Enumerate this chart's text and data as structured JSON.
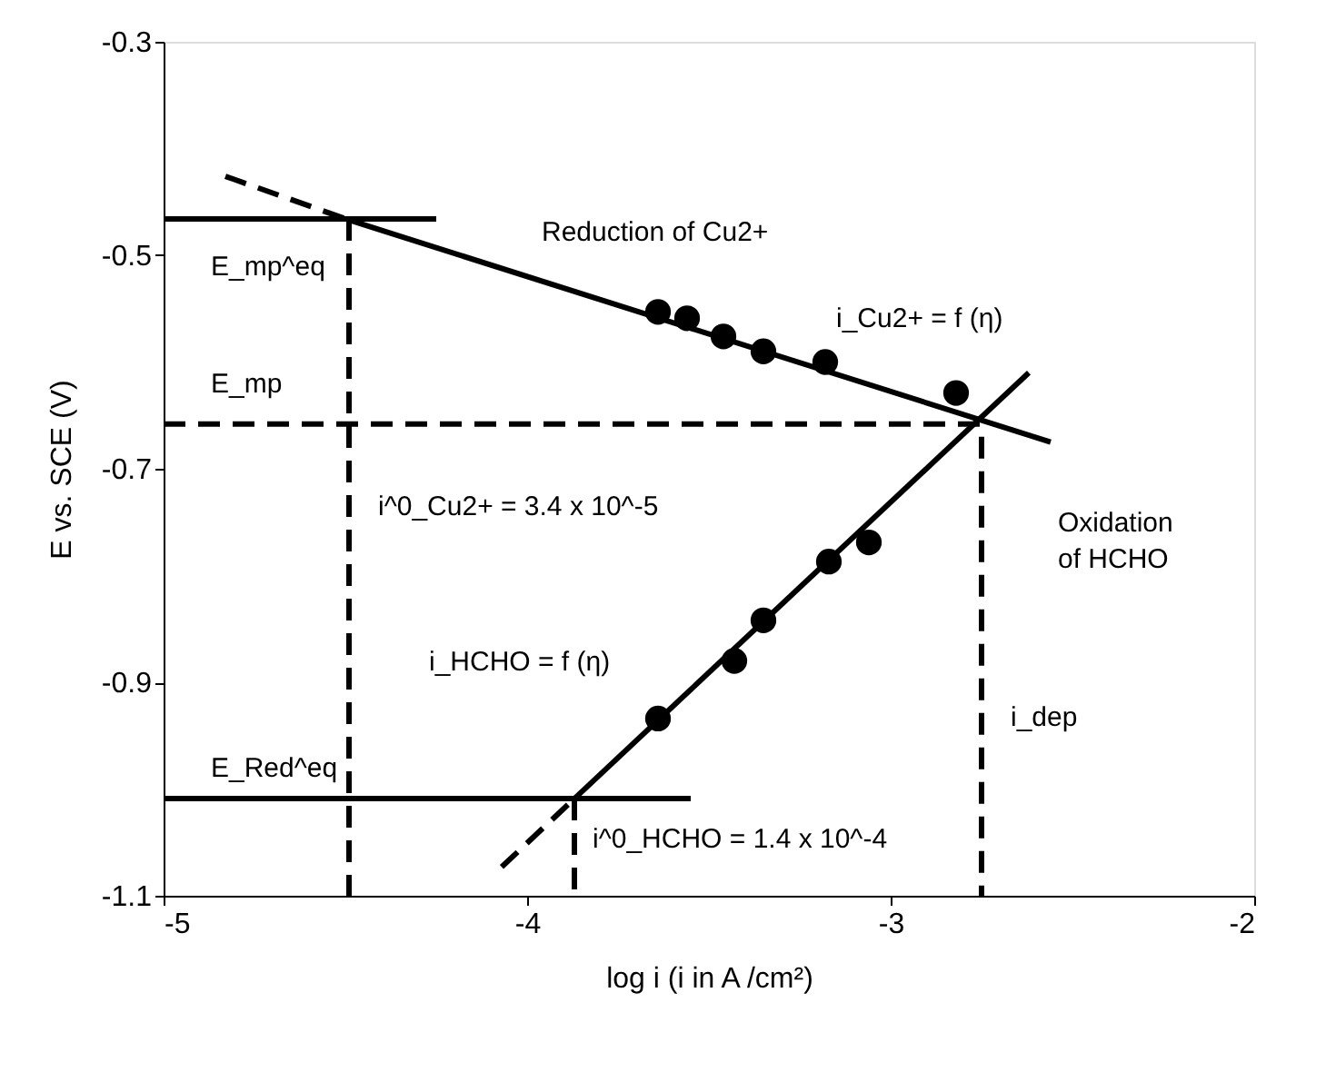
{
  "chart_data": {
    "type": "line",
    "xlabel": "log i (i in A /cm²)",
    "ylabel": "E vs. SCE (V)",
    "xlim": [
      -5,
      -2
    ],
    "xticks": [
      -5,
      -4,
      -3,
      -2
    ],
    "ylim": [
      -1.1,
      -0.3
    ],
    "yticks": [
      -1.1,
      -0.9,
      -0.7,
      -0.5,
      -0.3
    ],
    "grid": false,
    "series": [
      {
        "color": "#000000",
        "line_style": "solid",
        "marker": "none",
        "x": [
          -4.49,
          -2.56
        ],
        "values": [
          -0.467,
          -0.675
        ]
      },
      {
        "color": "#000000",
        "line_style": "dashed",
        "marker": "none",
        "x": [
          -4.83,
          -4.49
        ],
        "values": [
          -0.426,
          -0.467
        ]
      },
      {
        "type": "scatter",
        "color": "#000000",
        "marker": "circle",
        "x": [
          -3.64,
          -3.56,
          -3.46,
          -3.35,
          -3.18,
          -2.82
        ],
        "values": [
          -0.553,
          -0.559,
          -0.576,
          -0.59,
          -0.6,
          -0.629
        ]
      },
      {
        "color": "#000000",
        "line_style": "solid",
        "marker": "none",
        "x": [
          -3.87,
          -2.62
        ],
        "values": [
          -1.009,
          -0.61
        ]
      },
      {
        "color": "#000000",
        "line_style": "dashed",
        "marker": "none",
        "x": [
          -4.07,
          -3.87
        ],
        "values": [
          -1.073,
          -1.009
        ]
      },
      {
        "type": "scatter",
        "color": "#000000",
        "marker": "circle",
        "x": [
          -3.64,
          -3.43,
          -3.35,
          -3.17,
          -3.06
        ],
        "values": [
          -0.934,
          -0.88,
          -0.842,
          -0.787,
          -0.769
        ]
      },
      {
        "color": "#000000",
        "line_style": "solid",
        "marker": "none",
        "x": [
          -5,
          -4.25
        ],
        "values": [
          -0.466,
          -0.466
        ]
      },
      {
        "color": "#000000",
        "line_style": "dashed",
        "marker": "none",
        "x": [
          -5,
          -2.75
        ],
        "values": [
          -0.658,
          -0.658
        ]
      },
      {
        "color": "#000000",
        "line_style": "solid",
        "marker": "none",
        "x": [
          -5,
          -3.55
        ],
        "values": [
          -1.009,
          -1.009
        ]
      },
      {
        "color": "#000000",
        "line_style": "dashed",
        "marker": "none",
        "x": [
          -4.49,
          -4.49
        ],
        "values": [
          -0.466,
          -1.1
        ]
      },
      {
        "color": "#000000",
        "line_style": "dashed",
        "marker": "none",
        "x": [
          -3.87,
          -3.87
        ],
        "values": [
          -1.009,
          -1.1
        ]
      },
      {
        "color": "#000000",
        "line_style": "dashed",
        "marker": "none",
        "x": [
          -2.75,
          -2.75
        ],
        "values": [
          -0.67,
          -1.1
        ]
      }
    ],
    "annotations": [
      "Reduction of Cu2+",
      "i_Cu2+ = f (η)",
      "E_mp^eq",
      "E_mp",
      "i^0_Cu2+ = 3.4 x 10^-5",
      "Oxidation\nof HCHO",
      "i_HCHO = f (η)",
      "i_dep",
      "E_Red^eq",
      "i^0_HCHO = 1.4 x 10^-4"
    ]
  }
}
